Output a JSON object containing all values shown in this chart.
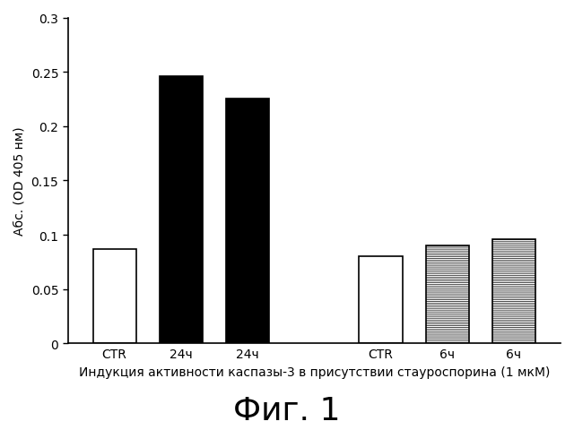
{
  "categories": [
    "CTR",
    "24ч",
    "24ч",
    "CTR",
    "6ч",
    "6ч"
  ],
  "values": [
    0.087,
    0.246,
    0.225,
    0.08,
    0.09,
    0.096
  ],
  "bar_styles": [
    "white",
    "black",
    "black",
    "white",
    "hatched",
    "hatched"
  ],
  "ylabel": "Абс. (OD 405 нм)",
  "xlabel": "Индукция активности каспазы-3 в присутствии стауроспорина (1 мкМ)",
  "figure_title": "Фиг. 1",
  "ylim": [
    0,
    0.3
  ],
  "yticks": [
    0,
    0.05,
    0.1,
    0.15,
    0.2,
    0.25,
    0.3
  ],
  "ytick_labels": [
    "0",
    "0.05",
    "0.1",
    "0.15",
    "0.2",
    "0.25",
    "0.3"
  ],
  "bar_width": 0.65,
  "background_color": "#ffffff",
  "hatch_pattern": "--------",
  "title_fontsize": 26,
  "xlabel_fontsize": 10,
  "ylabel_fontsize": 10,
  "tick_fontsize": 10
}
